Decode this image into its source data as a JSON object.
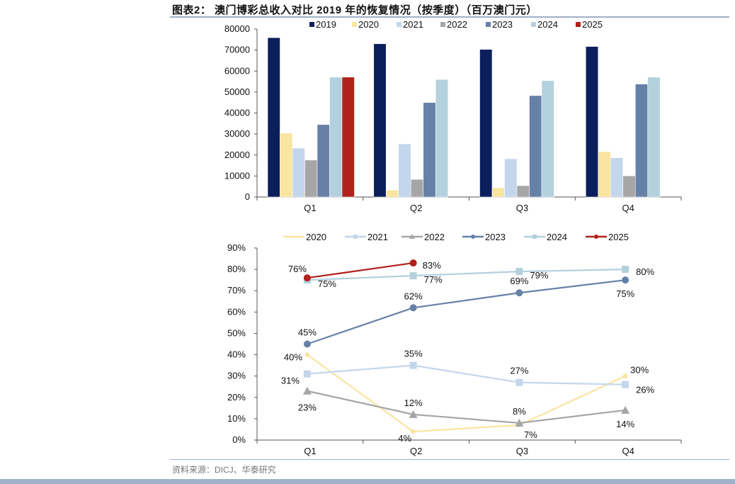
{
  "title": "图表2：  澳门博彩总收入对比 2019 年的恢复情况（按季度）（百万澳门元）",
  "source": "资料来源：DICJ、华泰研究",
  "colors": {
    "2019": "#0b1f5c",
    "2020": "#f9e4a0",
    "2021": "#c3d6eb",
    "2022": "#a6a6a6",
    "2023": "#6681a8",
    "2024": "#b3d0de",
    "2025": "#b0221b"
  },
  "chart_data": [
    {
      "type": "bar",
      "categories": [
        "Q1",
        "Q2",
        "Q3",
        "Q4"
      ],
      "ylim": [
        0,
        80000
      ],
      "yticks": [
        "0",
        "10000",
        "20000",
        "30000",
        "40000",
        "50000",
        "60000",
        "70000",
        "80000"
      ],
      "legend": "top",
      "grid": false,
      "series": [
        {
          "name": "2019",
          "values": [
            75900,
            73000,
            70300,
            71700
          ]
        },
        {
          "name": "2020",
          "values": [
            30400,
            3300,
            4400,
            21600
          ]
        },
        {
          "name": "2021",
          "values": [
            23300,
            25300,
            18200,
            18700
          ]
        },
        {
          "name": "2022",
          "values": [
            17600,
            8400,
            5400,
            10100
          ]
        },
        {
          "name": "2023",
          "values": [
            34500,
            45000,
            48300,
            53800
          ]
        },
        {
          "name": "2024",
          "values": [
            57100,
            56000,
            55400,
            57100
          ]
        },
        {
          "name": "2025",
          "values": [
            57100,
            null,
            null,
            null
          ]
        }
      ]
    },
    {
      "type": "line",
      "categories": [
        "Q1",
        "Q2",
        "Q3",
        "Q4"
      ],
      "ylim": [
        0,
        90
      ],
      "yticks": [
        "0%",
        "10%",
        "20%",
        "30%",
        "40%",
        "50%",
        "60%",
        "70%",
        "80%",
        "90%"
      ],
      "legend": "top",
      "grid": false,
      "series": [
        {
          "name": "2020",
          "marker": "diamond",
          "values": [
            40,
            4,
            7,
            30
          ],
          "labels": [
            "40%",
            "4%",
            "7%",
            "30%"
          ]
        },
        {
          "name": "2021",
          "marker": "square",
          "values": [
            31,
            35,
            27,
            26
          ],
          "labels": [
            "31%",
            "35%",
            "27%",
            "26%"
          ]
        },
        {
          "name": "2022",
          "marker": "triangle",
          "values": [
            23,
            12,
            8,
            14
          ],
          "labels": [
            "23%",
            "12%",
            "8%",
            "14%"
          ]
        },
        {
          "name": "2023",
          "marker": "circle",
          "values": [
            45,
            62,
            69,
            75
          ],
          "labels": [
            "45%",
            "62%",
            "69%",
            "75%"
          ]
        },
        {
          "name": "2024",
          "marker": "square",
          "values": [
            75,
            77,
            79,
            80
          ],
          "labels": [
            "75%",
            "77%",
            "79%",
            "80%"
          ]
        },
        {
          "name": "2025",
          "marker": "circle",
          "values": [
            76,
            83,
            null,
            null
          ],
          "labels": [
            "76%",
            "83%"
          ]
        }
      ]
    }
  ]
}
